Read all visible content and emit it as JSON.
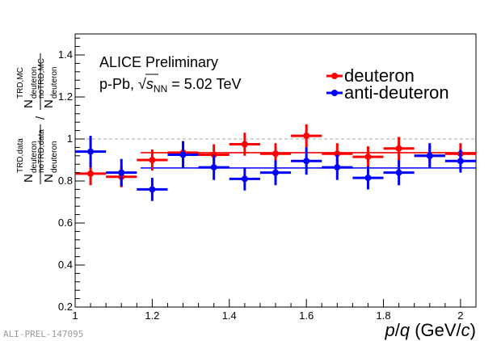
{
  "chart_data": {
    "type": "scatter",
    "title": "",
    "xlabel": "p/q (GeV/c)",
    "ylabel": "(N TRD,data deuteron / N noTRD,data deuteron) / (N TRD,MC deuteron / N noTRD,MC deuteron)",
    "xlim": [
      1.0,
      2.04
    ],
    "ylim": [
      0.2,
      1.5
    ],
    "x_ticks": [
      "1",
      "1.2",
      "1.4",
      "1.6",
      "1.8",
      "2"
    ],
    "y_ticks": [
      "0.2",
      "0.4",
      "0.6",
      "0.8",
      "1",
      "1.2",
      "1.4"
    ],
    "reference_line": 1.0,
    "annotations": {
      "experiment": "ALICE Preliminary",
      "system": "p-Pb, ",
      "sqrt_s": "s",
      "sqrt_s_sub": "NN",
      "energy": " = 5.02 TeV",
      "watermark": "ALI-PREL-147095"
    },
    "series": [
      {
        "name": "deuteron",
        "color": "#ff0000",
        "fit_value": 0.935,
        "fit_range": [
          1.17,
          2.04
        ],
        "points": [
          {
            "x": 1.04,
            "xerr": 0.04,
            "y": 0.835,
            "yerr": 0.055
          },
          {
            "x": 1.12,
            "xerr": 0.04,
            "y": 0.82,
            "yerr": 0.05
          },
          {
            "x": 1.2,
            "xerr": 0.04,
            "y": 0.9,
            "yerr": 0.05
          },
          {
            "x": 1.28,
            "xerr": 0.04,
            "y": 0.935,
            "yerr": 0.05
          },
          {
            "x": 1.36,
            "xerr": 0.04,
            "y": 0.925,
            "yerr": 0.05
          },
          {
            "x": 1.44,
            "xerr": 0.04,
            "y": 0.975,
            "yerr": 0.055
          },
          {
            "x": 1.52,
            "xerr": 0.04,
            "y": 0.93,
            "yerr": 0.05
          },
          {
            "x": 1.6,
            "xerr": 0.04,
            "y": 1.015,
            "yerr": 0.055
          },
          {
            "x": 1.68,
            "xerr": 0.04,
            "y": 0.93,
            "yerr": 0.05
          },
          {
            "x": 1.76,
            "xerr": 0.04,
            "y": 0.915,
            "yerr": 0.05
          },
          {
            "x": 1.84,
            "xerr": 0.04,
            "y": 0.955,
            "yerr": 0.055
          },
          {
            "x": 1.92,
            "xerr": 0.04,
            "y": 0.92,
            "yerr": 0.05
          },
          {
            "x": 2.0,
            "xerr": 0.04,
            "y": 0.93,
            "yerr": 0.05
          }
        ]
      },
      {
        "name": "anti-deuteron",
        "color": "#0000ff",
        "fit_value": 0.862,
        "fit_range": [
          1.17,
          2.04
        ],
        "points": [
          {
            "x": 1.04,
            "xerr": 0.04,
            "y": 0.94,
            "yerr": 0.075
          },
          {
            "x": 1.12,
            "xerr": 0.04,
            "y": 0.84,
            "yerr": 0.065
          },
          {
            "x": 1.2,
            "xerr": 0.04,
            "y": 0.76,
            "yerr": 0.055
          },
          {
            "x": 1.28,
            "xerr": 0.04,
            "y": 0.925,
            "yerr": 0.065
          },
          {
            "x": 1.36,
            "xerr": 0.04,
            "y": 0.865,
            "yerr": 0.06
          },
          {
            "x": 1.44,
            "xerr": 0.04,
            "y": 0.81,
            "yerr": 0.055
          },
          {
            "x": 1.52,
            "xerr": 0.04,
            "y": 0.84,
            "yerr": 0.06
          },
          {
            "x": 1.6,
            "xerr": 0.04,
            "y": 0.895,
            "yerr": 0.065
          },
          {
            "x": 1.68,
            "xerr": 0.04,
            "y": 0.865,
            "yerr": 0.06
          },
          {
            "x": 1.76,
            "xerr": 0.04,
            "y": 0.815,
            "yerr": 0.055
          },
          {
            "x": 1.84,
            "xerr": 0.04,
            "y": 0.84,
            "yerr": 0.06
          },
          {
            "x": 1.92,
            "xerr": 0.04,
            "y": 0.92,
            "yerr": 0.06
          },
          {
            "x": 2.0,
            "xerr": 0.04,
            "y": 0.895,
            "yerr": 0.055
          }
        ]
      }
    ]
  },
  "y_axis_label": {
    "num_main": "N",
    "num_sup": "TRD,data",
    "num_sub": "deuteron",
    "den_main": "N",
    "den_sup": "noTRD,data",
    "den_sub": "deuteron",
    "slash": "/",
    "mc_num_main": "N",
    "mc_num_sup": "TRD,MC",
    "mc_num_sub": "deuteron",
    "mc_den_main": "N",
    "mc_den_sup": "noTRD,MC",
    "mc_den_sub": "deuteron"
  },
  "x_axis_label": {
    "p": "p",
    "slash": "/",
    "q": "q",
    "unit_open": " (GeV/",
    "unit_c": "c",
    "unit_close": ")"
  }
}
